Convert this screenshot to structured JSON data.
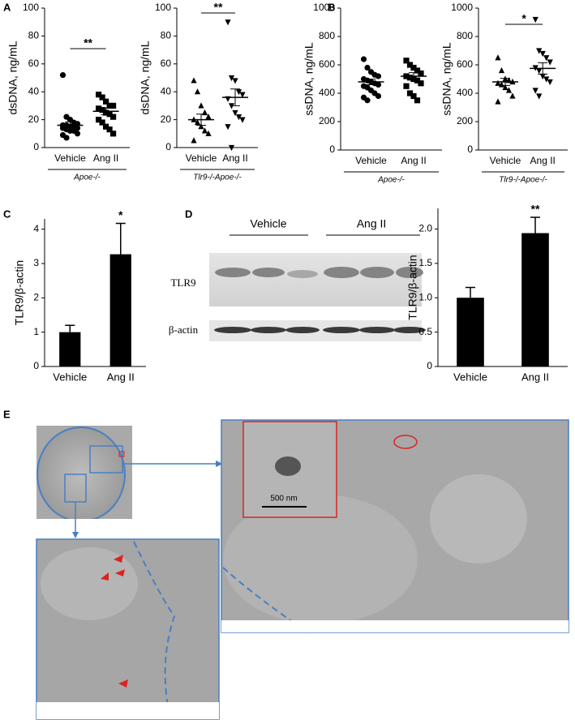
{
  "panel_labels": [
    "A",
    "B",
    "C",
    "D",
    "E"
  ],
  "chart_data": [
    {
      "type": "strip",
      "ylabel": "dsDNA, ng/mL",
      "ylim": [
        0,
        100
      ],
      "yticks": [
        0,
        20,
        40,
        60,
        80,
        100
      ],
      "series": [
        {
          "name": "Vehicle",
          "marker": "circle",
          "color": "#000000",
          "values": [
            52,
            22,
            20,
            18,
            17,
            16,
            16,
            15,
            15,
            14,
            14,
            13,
            12,
            12,
            10,
            9,
            7
          ],
          "mean": 16,
          "sem": 2.5
        },
        {
          "name": "Ang II",
          "marker": "square",
          "color": "#000000",
          "values": [
            38,
            36,
            33,
            30,
            30,
            28,
            27,
            25,
            24,
            22,
            20,
            18,
            15,
            13,
            10
          ],
          "mean": 26,
          "sem": 2.5
        }
      ],
      "significance": "**",
      "group_label": "Apoe-/-"
    },
    {
      "type": "strip",
      "ylabel": "dsDNA, ng/mL",
      "ylim": [
        0,
        100
      ],
      "yticks": [
        0,
        20,
        40,
        60,
        80,
        100
      ],
      "series": [
        {
          "name": "Vehicle",
          "marker": "triangle",
          "color": "#000000",
          "values": [
            48,
            40,
            30,
            25,
            22,
            20,
            18,
            15,
            12,
            10,
            5
          ],
          "mean": 20,
          "sem": 4
        },
        {
          "name": "Ang II",
          "marker": "triangle-down",
          "color": "#000000",
          "values": [
            90,
            50,
            48,
            40,
            38,
            35,
            30,
            25,
            22,
            20,
            15,
            0
          ],
          "mean": 36,
          "sem": 6
        }
      ],
      "significance": "**",
      "group_label": "Tlr9-/-Apoe-/-"
    },
    {
      "type": "strip",
      "ylabel": "ssDNA, ng/mL",
      "ylim": [
        0,
        1000
      ],
      "yticks": [
        0,
        200,
        400,
        600,
        800,
        1000
      ],
      "series": [
        {
          "name": "Vehicle",
          "marker": "circle",
          "color": "#000000",
          "values": [
            640,
            580,
            550,
            530,
            520,
            500,
            490,
            480,
            470,
            460,
            450,
            440,
            420,
            400,
            380,
            370,
            350
          ],
          "mean": 480,
          "sem": 20
        },
        {
          "name": "Ang II",
          "marker": "square",
          "color": "#000000",
          "values": [
            630,
            600,
            580,
            560,
            540,
            520,
            510,
            500,
            490,
            470,
            450,
            400,
            380,
            350
          ],
          "mean": 520,
          "sem": 25
        }
      ],
      "group_label": "Apoe-/-"
    },
    {
      "type": "strip",
      "ylabel": "ssDNA, ng/mL",
      "ylim": [
        0,
        1000
      ],
      "yticks": [
        0,
        200,
        400,
        600,
        800,
        1000
      ],
      "series": [
        {
          "name": "Vehicle",
          "marker": "triangle",
          "color": "#000000",
          "values": [
            650,
            560,
            500,
            490,
            480,
            470,
            460,
            440,
            420,
            380,
            340
          ],
          "mean": 480,
          "sem": 25
        },
        {
          "name": "Ang II",
          "marker": "triangle-down",
          "color": "#000000",
          "values": [
            920,
            700,
            680,
            650,
            620,
            580,
            560,
            520,
            500,
            480,
            420,
            380
          ],
          "mean": 575,
          "sem": 40
        }
      ],
      "significance": "*",
      "group_label": "Tlr9-/-Apoe-/-"
    },
    {
      "type": "bar",
      "ylabel": "TLR9/β-actin",
      "ylim": [
        0,
        4.3
      ],
      "yticks": [
        0,
        1,
        2,
        3,
        4
      ],
      "categories": [
        "Vehicle",
        "Ang II"
      ],
      "values": [
        1.0,
        3.27
      ],
      "errors": [
        0.2,
        0.9
      ],
      "color": "#000000",
      "significance": [
        null,
        "*"
      ]
    },
    {
      "type": "bar",
      "ylabel": "TLR9/β-actin",
      "ylim": [
        0,
        2.3
      ],
      "yticks": [
        0,
        {
          "value": 0.5,
          "label": "0.5"
        },
        {
          "value": 1,
          "label": "1.0"
        },
        {
          "value": 1.5,
          "label": "1.5"
        },
        {
          "value": 2,
          "label": "2.0"
        }
      ],
      "categories": [
        "Vehicle",
        "Ang II"
      ],
      "values": [
        1.0,
        1.94
      ],
      "errors": [
        0.15,
        0.23
      ],
      "color": "#000000",
      "significance": [
        null,
        "**"
      ]
    }
  ],
  "blot": {
    "groups": [
      "Vehicle",
      "Ang II"
    ],
    "rows": [
      "TLR9",
      "β-actin"
    ]
  },
  "micrograph": {
    "scale_bar": "500 nm"
  }
}
